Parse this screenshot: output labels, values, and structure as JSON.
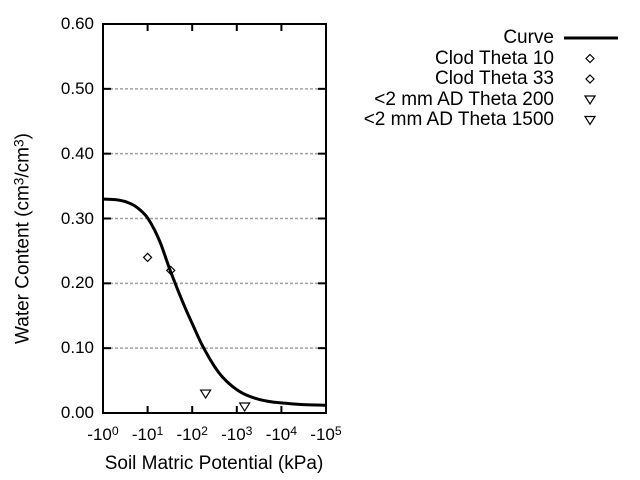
{
  "chart_data": {
    "type": "line",
    "title": "",
    "xlabel": "Soil Matric Potential (kPa)",
    "ylabel": "Water Content (cm³/cm³)",
    "x_axis": {
      "scale": "log10 of negative kPa",
      "tick_labels": [
        "-10⁰",
        "-10¹",
        "-10²",
        "-10³",
        "-10⁴",
        "-10⁵"
      ],
      "tick_decades": [
        0,
        1,
        2,
        3,
        4,
        5
      ]
    },
    "y_axis": {
      "tick_labels": [
        "0.00",
        "0.10",
        "0.20",
        "0.30",
        "0.40",
        "0.50",
        "0.60"
      ],
      "tick_values": [
        0,
        0.1,
        0.2,
        0.3,
        0.4,
        0.5,
        0.6
      ],
      "range": [
        0,
        0.6
      ]
    },
    "grid": {
      "horizontal_dotted_at": [
        0.1,
        0.2,
        0.3,
        0.4,
        0.5
      ]
    },
    "series": [
      {
        "name": "Curve",
        "type": "line",
        "log10_kpa": [
          0,
          0.3,
          0.5,
          0.7,
          0.9,
          1.0,
          1.15,
          1.3,
          1.5,
          1.7,
          1.85,
          2.0,
          2.2,
          2.4,
          2.6,
          2.8,
          3.0,
          3.2,
          3.5,
          3.8,
          4.1,
          4.5,
          5.0
        ],
        "values": [
          0.33,
          0.329,
          0.326,
          0.32,
          0.309,
          0.301,
          0.283,
          0.26,
          0.221,
          0.186,
          0.161,
          0.138,
          0.108,
          0.083,
          0.062,
          0.047,
          0.036,
          0.028,
          0.021,
          0.017,
          0.015,
          0.013,
          0.012
        ]
      },
      {
        "name": "Clod Theta 10",
        "type": "scatter",
        "marker": "diamond",
        "points": [
          {
            "kpa": -10,
            "theta": 0.24
          }
        ]
      },
      {
        "name": "Clod Theta 33",
        "type": "scatter",
        "marker": "diamond",
        "points": [
          {
            "kpa": -33,
            "theta": 0.22
          }
        ]
      },
      {
        "name": "<2 mm AD Theta 200",
        "type": "scatter",
        "marker": "triangle-down",
        "points": [
          {
            "kpa": -200,
            "theta": 0.03
          }
        ]
      },
      {
        "name": "<2 mm AD Theta 1500",
        "type": "scatter",
        "marker": "triangle-down",
        "points": [
          {
            "kpa": -1500,
            "theta": 0.01
          }
        ]
      }
    ],
    "legend": {
      "position": "top-right",
      "entries": [
        {
          "label": "Curve",
          "marker": "line"
        },
        {
          "label": "Clod Theta 10",
          "marker": "diamond"
        },
        {
          "label": "Clod Theta 33",
          "marker": "diamond"
        },
        {
          "label": "<2 mm AD Theta 200",
          "marker": "triangle-down"
        },
        {
          "label": "<2 mm AD Theta 1500",
          "marker": "triangle-down"
        }
      ]
    }
  },
  "colors": {
    "background": "#ffffff",
    "axis": "#000000",
    "curve": "#000000",
    "marker": "#000000",
    "grid": "#a0a0a0",
    "text": "#000000"
  }
}
